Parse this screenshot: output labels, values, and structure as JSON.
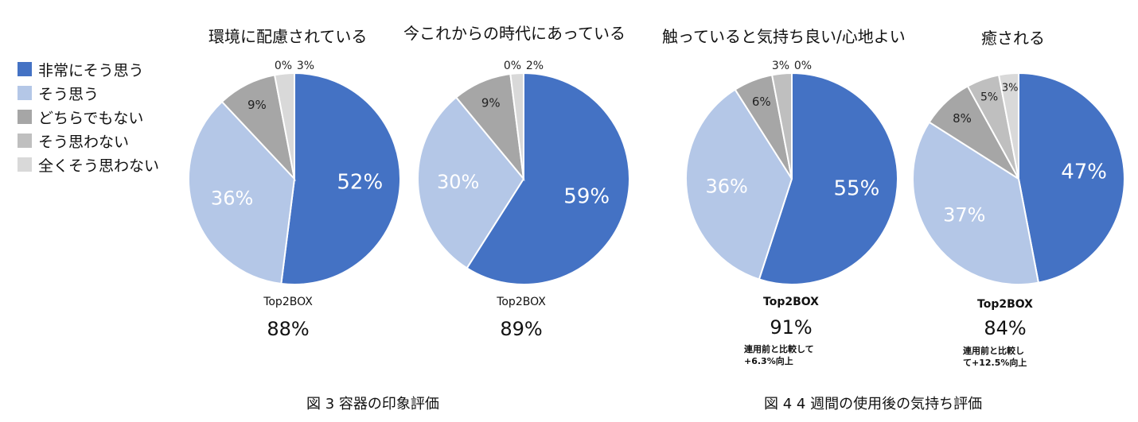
{
  "legend": {
    "items": [
      {
        "label": "非常にそう思う",
        "color": "#4472c4"
      },
      {
        "label": "そう思う",
        "color": "#b4c7e7"
      },
      {
        "label": "どちらでもない",
        "color": "#a6a6a6"
      },
      {
        "label": "そう思わない",
        "color": "#bfbfbf"
      },
      {
        "label": "全くそう思わない",
        "color": "#d9d9d9"
      }
    ]
  },
  "chart_data": [
    {
      "type": "pie",
      "title": "環境に配慮されている",
      "categories": [
        "非常にそう思う",
        "そう思う",
        "どちらでもない",
        "そう思わない",
        "全くそう思わない"
      ],
      "values": [
        52,
        36,
        9,
        0,
        3
      ],
      "labels": [
        "52%",
        "36%",
        "9%",
        "0%",
        "3%"
      ],
      "top2_label": "Top2BOX",
      "top2_value": "88%",
      "note": ""
    },
    {
      "type": "pie",
      "title": "今これからの時代にあっている",
      "categories": [
        "非常にそう思う",
        "そう思う",
        "どちらでもない",
        "そう思わない",
        "全くそう思わない"
      ],
      "values": [
        59,
        30,
        9,
        0,
        2
      ],
      "labels": [
        "59%",
        "30%",
        "9%",
        "0%",
        "2%"
      ],
      "top2_label": "Top2BOX",
      "top2_value": "89%",
      "note": ""
    },
    {
      "type": "pie",
      "title": "触っていると気持ち良い/心地よい",
      "categories": [
        "非常にそう思う",
        "そう思う",
        "どちらでもない",
        "そう思わない",
        "全くそう思わない"
      ],
      "values": [
        55,
        36,
        6,
        3,
        0
      ],
      "labels": [
        "55%",
        "36%",
        "6%",
        "3%",
        "0%"
      ],
      "top2_label": "Top2BOX",
      "top2_value": "91%",
      "note": "連用前と比較して\n+6.3%向上"
    },
    {
      "type": "pie",
      "title": "癒される",
      "categories": [
        "非常にそう思う",
        "そう思う",
        "どちらでもない",
        "そう思わない",
        "全くそう思わない"
      ],
      "values": [
        47,
        37,
        8,
        5,
        3
      ],
      "labels": [
        "47%",
        "37%",
        "8%",
        "5%",
        "3%"
      ],
      "top2_label": "Top2BOX",
      "top2_value": "84%",
      "note": "連用前と比較し\nて+12.5%向上"
    }
  ],
  "captions": {
    "left": "図 3 容器の印象評価",
    "right": "図 4 4 週間の使用後の気持ち評価"
  }
}
